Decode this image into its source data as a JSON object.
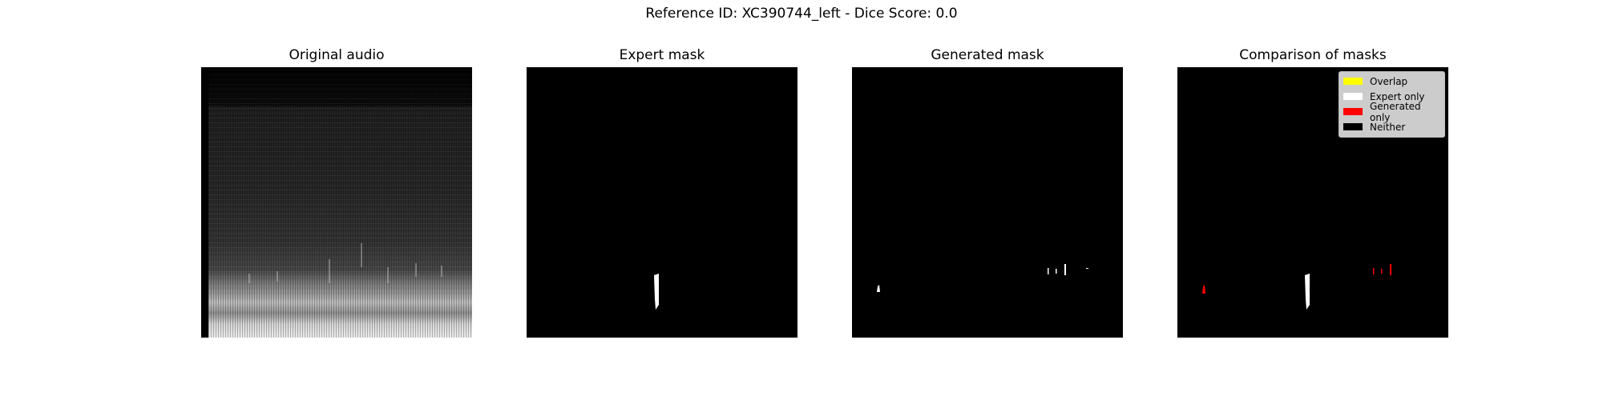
{
  "figure": {
    "suptitle": "Reference ID: XC390744_left - Dice Score: 0.0"
  },
  "panels": [
    {
      "title": "Original audio"
    },
    {
      "title": "Expert mask"
    },
    {
      "title": "Generated mask"
    },
    {
      "title": "Comparison of masks"
    }
  ],
  "legend": {
    "placement": "top-right",
    "items": [
      {
        "label": "Overlap",
        "color": "#ffff00"
      },
      {
        "label": "Expert only",
        "color": "#ffffff"
      },
      {
        "label": "Generated only",
        "color": "#ff0000"
      },
      {
        "label": "Neither",
        "color": "#000000"
      }
    ]
  },
  "colors": {
    "background": "#000000",
    "expert": "#ffffff",
    "generated": "#ffffff",
    "generated_only": "#ff0000",
    "overlap": "#ffff00"
  }
}
